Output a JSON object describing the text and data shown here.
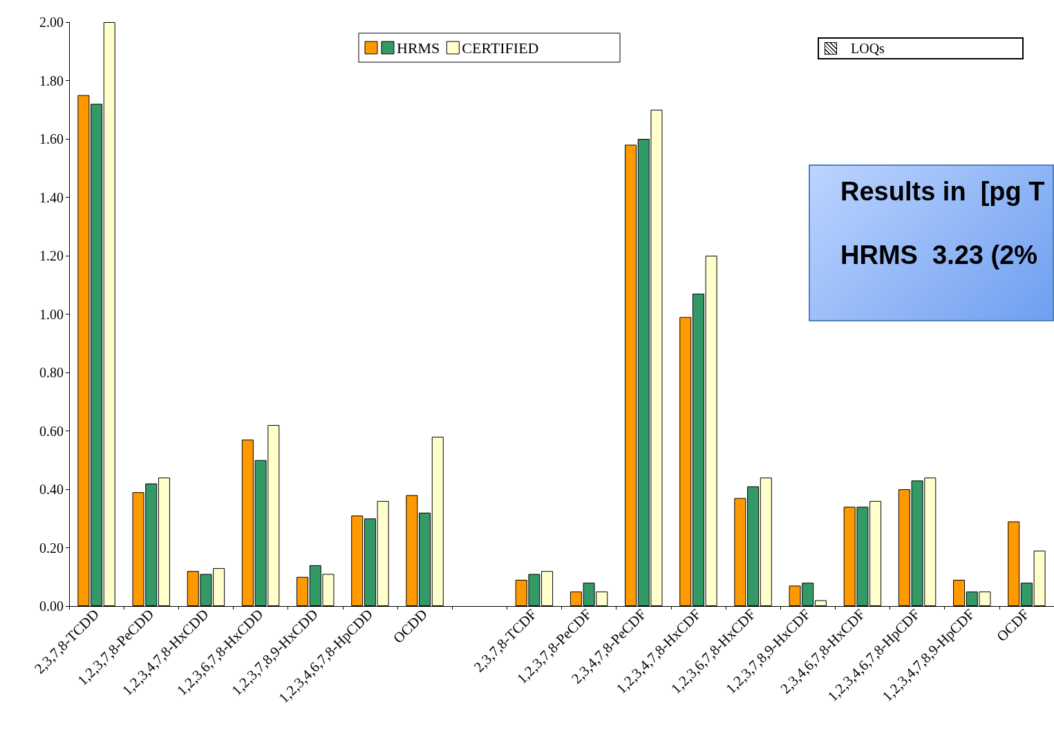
{
  "chart_data": {
    "type": "bar",
    "categories": [
      "2,3,7,8-TCDD",
      "1,2,3,7,8-PeCDD",
      "1,2,3,4,7,8-HxCDD",
      "1,2,3,6,7,8-HxCDD",
      "1,2,3,7,8,9-HxCDD",
      "1,2,3,4,6,7,8-HpCDD",
      "OCDD",
      null,
      "2,3,7,8-TCDF",
      "1,2,3,7,8-PeCDF",
      "2,3,4,7,8-PeCDF",
      "1,2,3,4,7,8-HxCDF",
      "1,2,3,6,7,8-HxCDF",
      "1,2,3,7,8,9-HxCDF",
      "2,3,4,6,7,8-HxCDF",
      "1,2,3,4,6,7,8-HpCDF",
      "1,2,3,4,7,8,9-HpCDF",
      "OCDF"
    ],
    "series": [
      {
        "color": "#ff9900",
        "values": [
          1.75,
          0.39,
          0.12,
          0.57,
          0.1,
          0.31,
          0.38,
          null,
          0.09,
          0.05,
          1.58,
          0.99,
          0.37,
          0.07,
          0.34,
          0.4,
          0.09,
          0.29
        ]
      },
      {
        "name": "HRMS",
        "color": "#339966",
        "values": [
          1.72,
          0.42,
          0.11,
          0.5,
          0.14,
          0.3,
          0.32,
          null,
          0.11,
          0.08,
          1.6,
          1.07,
          0.41,
          0.08,
          0.34,
          0.43,
          0.05,
          0.08
        ]
      },
      {
        "name": "CERTIFIED",
        "color": "#ffffcc",
        "values": [
          2.0,
          0.44,
          0.13,
          0.62,
          0.11,
          0.36,
          0.58,
          null,
          0.12,
          0.05,
          1.7,
          1.2,
          0.44,
          0.02,
          0.36,
          0.44,
          0.05,
          0.19
        ]
      }
    ],
    "ylim": [
      0,
      2
    ],
    "yticks": [
      {
        "value": 0,
        "label": "0.00"
      },
      {
        "value": 0.2,
        "label": "0.20"
      },
      {
        "value": 0.4,
        "label": "0.40"
      },
      {
        "value": 0.6,
        "label": "0.60"
      },
      {
        "value": 0.8,
        "label": "0.80"
      },
      {
        "value": 1,
        "label": "1.00"
      },
      {
        "value": 1.2,
        "label": "1.20"
      },
      {
        "value": 1.4,
        "label": "1.40"
      },
      {
        "value": 1.6,
        "label": "1.60"
      },
      {
        "value": 1.8,
        "label": "1.80"
      },
      {
        "value": 2,
        "label": "2.00"
      }
    ],
    "grid": false,
    "legend": "top",
    "annotations": [
      "LOQs",
      "Results in  [pg T",
      "HRMS  3.23 (2%"
    ]
  }
}
